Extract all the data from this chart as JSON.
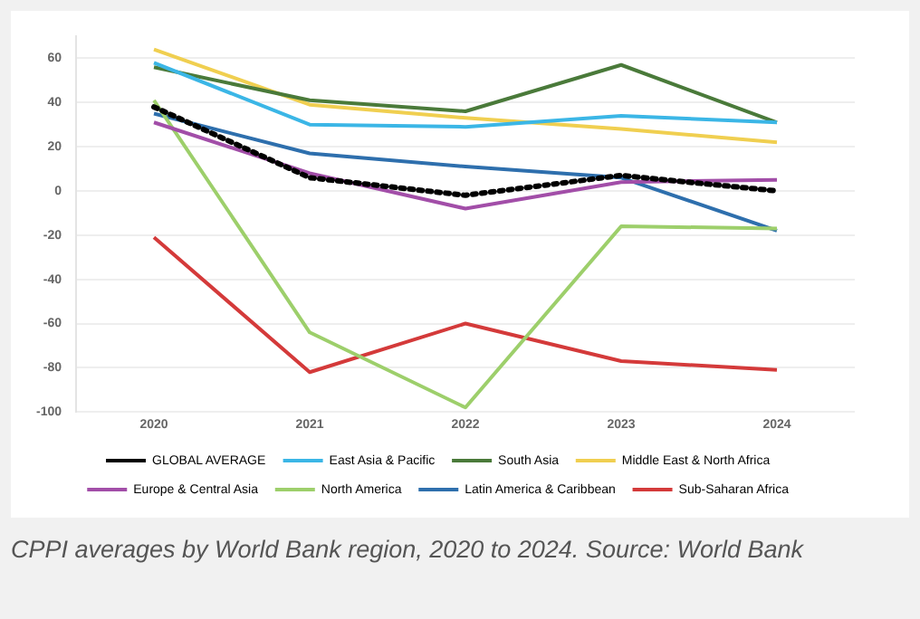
{
  "chart_data": {
    "type": "line",
    "categories": [
      "2020",
      "2021",
      "2022",
      "2023",
      "2024"
    ],
    "series": [
      {
        "name": "GLOBAL AVERAGE",
        "color": "#000000",
        "line_style": "dotted",
        "values": [
          38,
          6,
          -2,
          7,
          0
        ]
      },
      {
        "name": "East Asia & Pacific",
        "color": "#3bb6e6",
        "values": [
          58,
          30,
          29,
          34,
          31
        ]
      },
      {
        "name": "South Asia",
        "color": "#4a7a3a",
        "values": [
          56,
          41,
          36,
          57,
          31
        ]
      },
      {
        "name": "Middle East & North Africa",
        "color": "#f0cf50",
        "values": [
          64,
          39,
          33,
          28,
          22
        ]
      },
      {
        "name": "Europe & Central Asia",
        "color": "#a24ea8",
        "values": [
          31,
          8,
          -8,
          4,
          5
        ]
      },
      {
        "name": "North America",
        "color": "#9dcf6b",
        "values": [
          41,
          -64,
          -98,
          -16,
          -17
        ]
      },
      {
        "name": "Latin America & Caribbean",
        "color": "#2e6fad",
        "values": [
          35,
          17,
          11,
          6,
          -18
        ]
      },
      {
        "name": "Sub-Saharan Africa",
        "color": "#d43a3a",
        "values": [
          -21,
          -82,
          -60,
          -77,
          -81
        ]
      }
    ],
    "ylim": [
      -100,
      70
    ],
    "yticks": [
      -100,
      -80,
      -60,
      -40,
      -20,
      0,
      20,
      40,
      60
    ],
    "grid": "y",
    "legend": "bottom",
    "marker": "none",
    "line_style": "solid",
    "annotations": [
      "CPPI averages by World Bank region, 2020 to 2024. Source: World Bank"
    ]
  }
}
